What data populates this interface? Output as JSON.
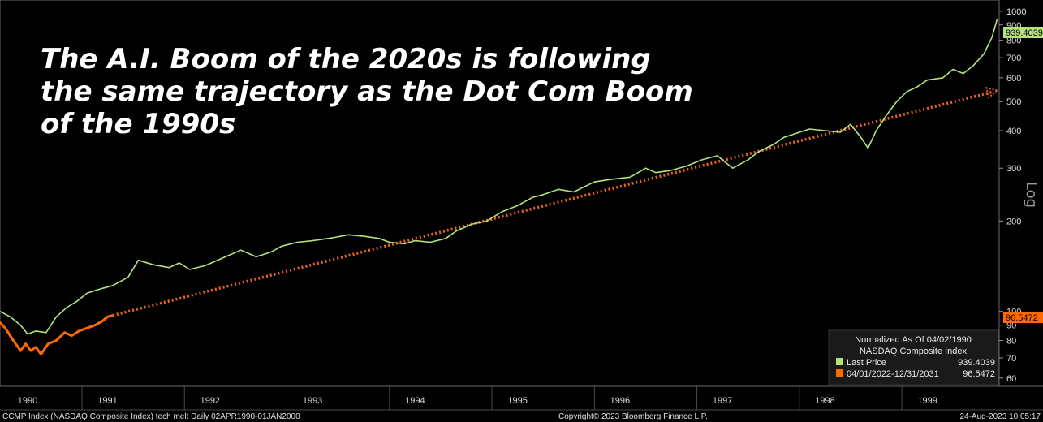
{
  "chart_data": {
    "type": "line",
    "title_lines": [
      "The A.I. Boom of the 2020s is following",
      "the same trajectory as the Dot Com Boom",
      "of the 1990s"
    ],
    "y_scale": "log",
    "y_scale_label": "Log",
    "ylim": [
      57,
      1050
    ],
    "y_ticks": [
      60,
      70,
      80,
      90,
      100,
      200,
      300,
      400,
      500,
      600,
      700,
      800,
      900,
      1000
    ],
    "x_tick_labels": [
      "1990",
      "1991",
      "1992",
      "1993",
      "1994",
      "1995",
      "1996",
      "1997",
      "1998",
      "1999"
    ],
    "x_range_years": [
      1990.25,
      2000.0
    ],
    "series": [
      {
        "name": "Last Price",
        "color": "#b5e27c",
        "last_value": "939.4039",
        "x": [
          1990.25,
          1990.35,
          1990.45,
          1990.52,
          1990.6,
          1990.7,
          1990.8,
          1990.9,
          1991.0,
          1991.1,
          1991.2,
          1991.35,
          1991.5,
          1991.6,
          1991.75,
          1991.9,
          1992.0,
          1992.1,
          1992.25,
          1992.45,
          1992.6,
          1992.75,
          1992.9,
          1993.0,
          1993.15,
          1993.3,
          1993.5,
          1993.65,
          1993.8,
          1993.95,
          1994.05,
          1994.2,
          1994.3,
          1994.45,
          1994.6,
          1994.7,
          1994.85,
          1995.0,
          1995.15,
          1995.3,
          1995.45,
          1995.55,
          1995.7,
          1995.85,
          1995.95,
          1996.05,
          1996.2,
          1996.4,
          1996.55,
          1996.65,
          1996.8,
          1996.95,
          1997.1,
          1997.25,
          1997.4,
          1997.55,
          1997.65,
          1997.8,
          1997.9,
          1998.0,
          1998.15,
          1998.3,
          1998.45,
          1998.55,
          1998.65,
          1998.72,
          1998.8,
          1998.9,
          1999.0,
          1999.1,
          1999.2,
          1999.3,
          1999.45,
          1999.55,
          1999.65,
          1999.75,
          1999.85,
          1999.93,
          1999.98
        ],
        "values": [
          100,
          96,
          90,
          84,
          86,
          85,
          96,
          103,
          108,
          115,
          118,
          122,
          130,
          148,
          143,
          140,
          145,
          138,
          142,
          152,
          160,
          152,
          158,
          165,
          170,
          172,
          176,
          180,
          178,
          175,
          170,
          168,
          172,
          170,
          175,
          185,
          195,
          200,
          215,
          225,
          240,
          245,
          255,
          250,
          260,
          270,
          275,
          280,
          300,
          290,
          295,
          305,
          320,
          330,
          300,
          320,
          340,
          360,
          380,
          390,
          405,
          400,
          395,
          420,
          380,
          350,
          400,
          450,
          500,
          540,
          560,
          590,
          600,
          640,
          620,
          660,
          720,
          820,
          939.4
        ]
      },
      {
        "name": "04/01/2022-12/31/2031",
        "color": "#ff6a00",
        "last_value": "96.5472",
        "x": [
          1990.25,
          1990.3,
          1990.38,
          1990.45,
          1990.5,
          1990.55,
          1990.6,
          1990.65,
          1990.72,
          1990.8,
          1990.88,
          1990.95,
          1991.02,
          1991.1,
          1991.18,
          1991.25,
          1991.3,
          1991.35
        ],
        "values": [
          92,
          88,
          80,
          74,
          78,
          74,
          76,
          72,
          78,
          80,
          85,
          83,
          86,
          88,
          90,
          93,
          96,
          97
        ]
      }
    ],
    "trend_projection": {
      "color": "#e8641f",
      "style": "dotted arrow",
      "x": [
        1991.35,
        1999.98
      ],
      "values": [
        97,
        545
      ]
    },
    "legend": {
      "placement": "bottom-right",
      "header_1": "Normalized As Of 04/02/1990",
      "header_2": "NASDAQ Composite Index",
      "entries": [
        {
          "label": "Last Price",
          "value": "939.4039",
          "color": "#b5e27c"
        },
        {
          "label": "04/01/2022-12/31/2031",
          "value": "96.5472",
          "color": "#ff6a00"
        }
      ]
    },
    "footer": {
      "left": "CCMP Index (NASDAQ Composite Index) tech melt  Daily 02APR1990-01JAN2000",
      "center": "Copyright© 2023 Bloomberg Finance L.P.",
      "right": "24-Aug-2023 10:05:17"
    }
  }
}
